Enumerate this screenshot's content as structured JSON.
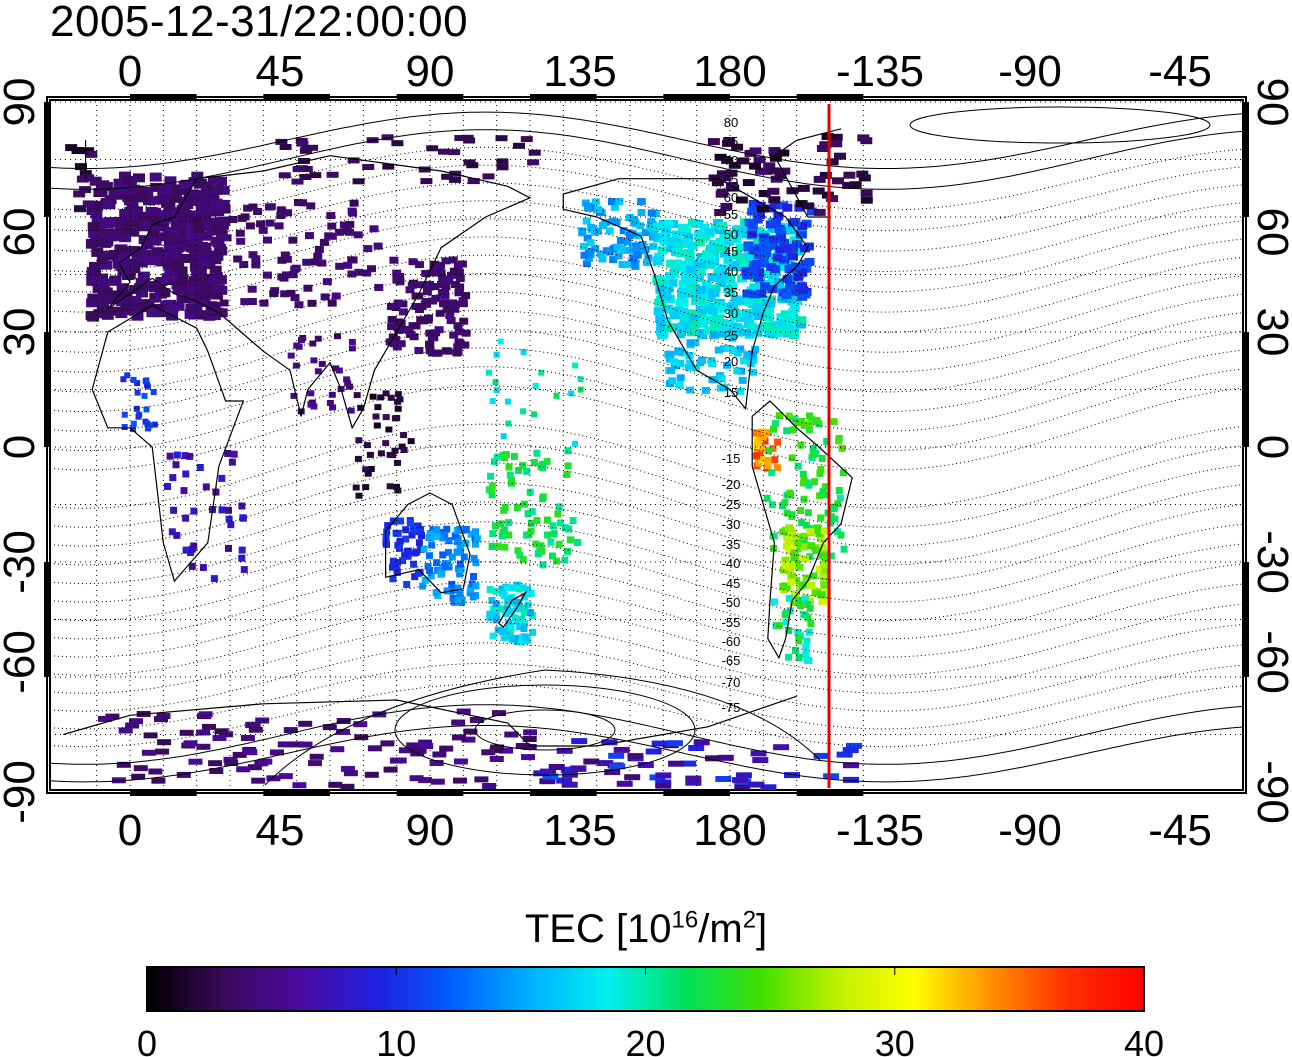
{
  "header": {
    "timestamp": "2005-12-31/22:00:00"
  },
  "map": {
    "lon_ticks": [
      "0",
      "45",
      "90",
      "135",
      "180",
      "-135",
      "-90",
      "-45"
    ],
    "lat_ticks": [
      "90",
      "60",
      "30",
      "0",
      "-30",
      "-60",
      "-90"
    ],
    "contour_labels": [
      "80",
      "75",
      "70",
      "65",
      "60",
      "55",
      "50",
      "45",
      "40",
      "35",
      "30",
      "25",
      "20",
      "15",
      "-15",
      "-20",
      "-25",
      "-30",
      "-35",
      "-40",
      "-45",
      "-50",
      "-55",
      "-60",
      "-65",
      "-70",
      "-75"
    ],
    "marker_color": "#e00000",
    "background": "#ffffff",
    "grid": "dotted"
  },
  "colorbar": {
    "title_prefix": "TEC  [10",
    "title_exp1": "16",
    "title_mid": "/m",
    "title_exp2": "2",
    "title_suffix": "]",
    "tick_labels": [
      "0",
      "10",
      "20",
      "30",
      "40"
    ],
    "min": 0,
    "max": 40,
    "colormap": [
      "#000000",
      "#3a0a5a",
      "#4a0aa0",
      "#2020e0",
      "#0060ff",
      "#00b0ff",
      "#00f0f0",
      "#00e060",
      "#40e000",
      "#c0f000",
      "#ffff00",
      "#ff9000",
      "#ff3000",
      "#ff0000"
    ]
  }
}
